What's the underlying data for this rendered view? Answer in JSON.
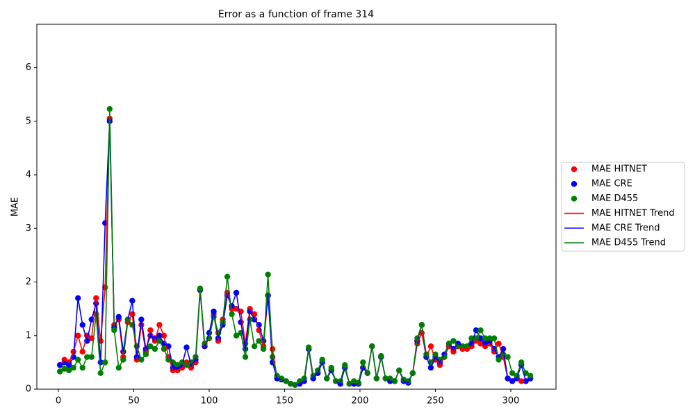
{
  "chart_data": {
    "type": "scatter_line",
    "title": "Error as a function of frame 314",
    "y_label": "MAE",
    "xlim": [
      -14.3,
      330
    ],
    "ylim": [
      0,
      6.81
    ],
    "xticks": [
      0,
      50,
      100,
      150,
      200,
      250,
      300
    ],
    "yticks": [
      0,
      1,
      2,
      3,
      4,
      5,
      6
    ],
    "legend": "right",
    "x": [
      1,
      4,
      7,
      10,
      13,
      16,
      19,
      22,
      25,
      28,
      31,
      34,
      37,
      40,
      43,
      46,
      49,
      52,
      55,
      58,
      61,
      64,
      67,
      70,
      73,
      76,
      79,
      82,
      85,
      88,
      91,
      94,
      97,
      100,
      103,
      106,
      109,
      112,
      115,
      118,
      121,
      124,
      127,
      130,
      133,
      136,
      139,
      142,
      145,
      148,
      151,
      154,
      157,
      160,
      163,
      166,
      169,
      172,
      175,
      178,
      181,
      184,
      187,
      190,
      193,
      196,
      199,
      202,
      205,
      208,
      211,
      214,
      217,
      220,
      223,
      226,
      229,
      232,
      235,
      238,
      241,
      244,
      247,
      250,
      253,
      256,
      259,
      262,
      265,
      268,
      271,
      274,
      277,
      280,
      283,
      286,
      289,
      292,
      295,
      298,
      301,
      304,
      307,
      310,
      313
    ],
    "series": [
      {
        "name": "MAE HITNET",
        "trend_name": "MAE HITNET Trend",
        "color": "red",
        "values": [
          0.45,
          0.55,
          0.5,
          0.7,
          1.0,
          0.7,
          1.0,
          0.95,
          1.7,
          0.9,
          1.9,
          5.05,
          1.2,
          1.3,
          0.6,
          1.25,
          1.4,
          0.55,
          1.2,
          0.7,
          1.1,
          0.9,
          1.2,
          1.0,
          0.6,
          0.35,
          0.35,
          0.4,
          0.5,
          0.4,
          0.5,
          1.85,
          0.8,
          0.95,
          1.4,
          0.9,
          1.3,
          1.8,
          1.5,
          1.5,
          1.45,
          0.85,
          1.5,
          1.4,
          1.1,
          0.8,
          1.75,
          0.75,
          0.2,
          0.18,
          0.15,
          0.1,
          0.08,
          0.1,
          0.15,
          0.75,
          0.2,
          0.3,
          0.5,
          0.2,
          0.35,
          0.15,
          0.1,
          0.4,
          0.1,
          0.1,
          0.1,
          0.4,
          0.3,
          0.8,
          0.2,
          0.6,
          0.2,
          0.15,
          0.15,
          0.35,
          0.15,
          0.12,
          0.3,
          0.85,
          1.05,
          0.6,
          0.8,
          0.55,
          0.45,
          0.6,
          0.8,
          0.7,
          0.8,
          0.75,
          0.75,
          0.8,
          0.9,
          0.85,
          0.8,
          0.85,
          0.7,
          0.85,
          0.6,
          0.2,
          0.15,
          0.2,
          0.15,
          0.15,
          0.2
        ]
      },
      {
        "name": "MAE CRE",
        "trend_name": "MAE CRE Trend",
        "color": "blue",
        "values": [
          0.45,
          0.5,
          0.45,
          0.6,
          1.7,
          1.2,
          0.9,
          1.3,
          1.6,
          0.5,
          3.1,
          5.0,
          1.15,
          1.35,
          0.7,
          1.3,
          1.65,
          0.6,
          1.3,
          0.75,
          1.0,
          0.95,
          1.0,
          0.85,
          0.8,
          0.4,
          0.4,
          0.45,
          0.78,
          0.45,
          0.55,
          1.85,
          0.8,
          1.05,
          1.45,
          0.95,
          1.2,
          1.75,
          1.55,
          1.8,
          1.25,
          0.75,
          1.45,
          1.3,
          1.2,
          0.9,
          1.75,
          0.5,
          0.2,
          0.18,
          0.15,
          0.1,
          0.08,
          0.1,
          0.15,
          0.75,
          0.2,
          0.3,
          0.5,
          0.2,
          0.35,
          0.15,
          0.1,
          0.4,
          0.1,
          0.1,
          0.1,
          0.4,
          0.3,
          0.8,
          0.2,
          0.6,
          0.2,
          0.15,
          0.15,
          0.35,
          0.15,
          0.12,
          0.3,
          0.9,
          1.2,
          0.6,
          0.4,
          0.6,
          0.5,
          0.65,
          0.85,
          0.75,
          0.85,
          0.8,
          0.8,
          0.85,
          1.1,
          0.95,
          0.85,
          0.9,
          0.75,
          0.6,
          0.75,
          0.2,
          0.15,
          0.2,
          0.45,
          0.15,
          0.2
        ]
      },
      {
        "name": "MAE D455",
        "trend_name": "MAE D455 Trend",
        "color": "green",
        "values": [
          0.33,
          0.38,
          0.35,
          0.4,
          0.55,
          0.4,
          0.6,
          0.6,
          1.4,
          0.3,
          0.5,
          5.23,
          1.1,
          0.4,
          0.55,
          1.3,
          1.2,
          0.8,
          0.55,
          0.65,
          0.8,
          0.75,
          0.9,
          0.75,
          0.55,
          0.5,
          0.45,
          0.5,
          0.45,
          0.5,
          0.6,
          1.88,
          0.85,
          0.95,
          1.35,
          1.05,
          1.25,
          2.1,
          1.4,
          1.0,
          1.05,
          0.6,
          1.3,
          0.8,
          0.9,
          0.75,
          2.14,
          0.6,
          0.25,
          0.2,
          0.15,
          0.1,
          0.08,
          0.15,
          0.2,
          0.78,
          0.25,
          0.35,
          0.55,
          0.2,
          0.4,
          0.15,
          0.15,
          0.45,
          0.1,
          0.15,
          0.12,
          0.5,
          0.3,
          0.8,
          0.2,
          0.62,
          0.2,
          0.2,
          0.15,
          0.35,
          0.18,
          0.15,
          0.3,
          0.95,
          1.2,
          0.65,
          0.5,
          0.65,
          0.55,
          0.6,
          0.85,
          0.9,
          0.8,
          0.8,
          0.8,
          0.95,
          0.95,
          1.1,
          0.95,
          0.95,
          0.95,
          0.55,
          0.65,
          0.6,
          0.3,
          0.25,
          0.5,
          0.3,
          0.25
        ]
      }
    ]
  }
}
